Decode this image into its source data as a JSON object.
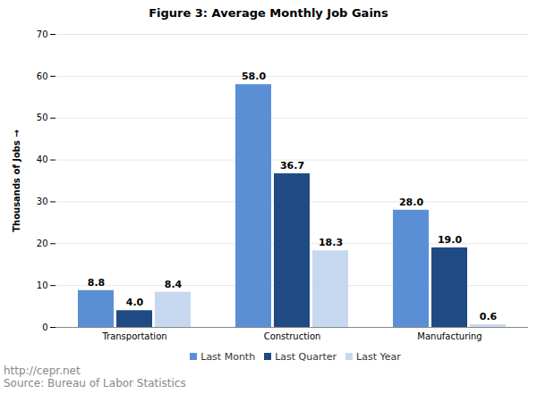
{
  "chart_data": {
    "type": "bar",
    "title": "Figure 3: Average Monthly Job Gains",
    "y_label": "Thousands of Jobs",
    "categories": [
      "Transportation",
      "Construction",
      "Manufacturing"
    ],
    "series": [
      {
        "name": "Last Month",
        "color": "#5a8fd6",
        "values": [
          8.8,
          58.0,
          28.0
        ],
        "value_labels": [
          "8.8",
          "58.0",
          "28.0"
        ]
      },
      {
        "name": "Last Quarter",
        "color": "#1f4a84",
        "values": [
          4.0,
          36.7,
          19.0
        ],
        "value_labels": [
          "4.0",
          "36.7",
          "19.0"
        ]
      },
      {
        "name": "Last Year",
        "color": "#c6d8f0",
        "values": [
          8.4,
          18.3,
          0.6
        ],
        "value_labels": [
          "8.4",
          "18.3",
          "0.6"
        ]
      }
    ],
    "ylim": [
      0,
      70
    ],
    "yticks": [
      0,
      10,
      20,
      30,
      40,
      50,
      60,
      70
    ],
    "grid": true,
    "data_labels": true,
    "legend": "bottom",
    "annotations": [
      "http://cepr.net",
      "Source: Bureau of Labor Statistics"
    ]
  }
}
